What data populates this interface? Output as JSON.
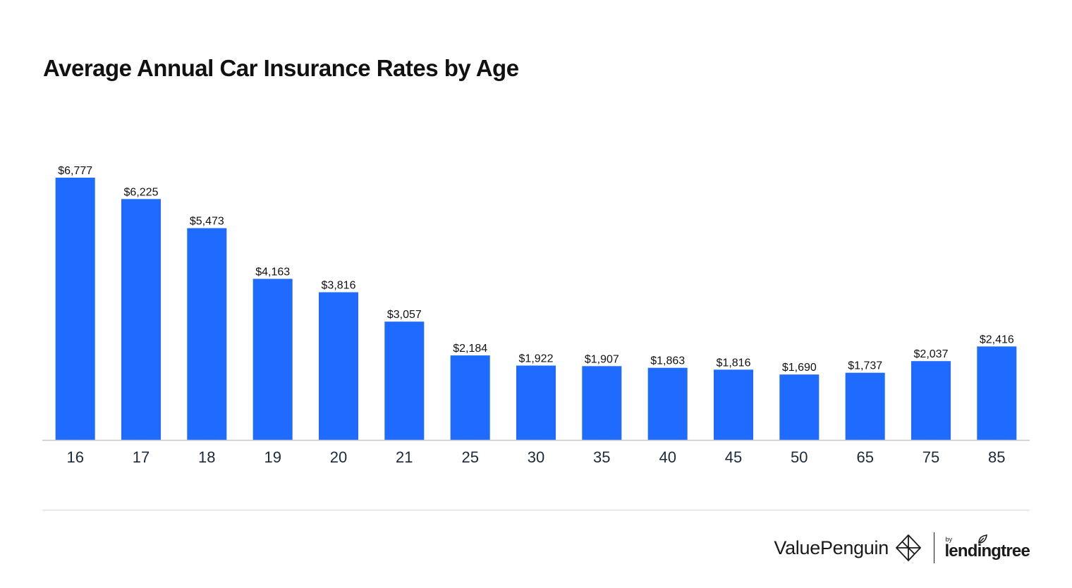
{
  "chart_data": {
    "type": "bar",
    "title": "Average Annual Car Insurance Rates by Age",
    "xlabel": "",
    "ylabel": "",
    "categories": [
      "16",
      "17",
      "18",
      "19",
      "20",
      "21",
      "25",
      "30",
      "35",
      "40",
      "45",
      "50",
      "65",
      "75",
      "85"
    ],
    "values": [
      6777,
      6225,
      5473,
      4163,
      3816,
      3057,
      2184,
      1922,
      1907,
      1863,
      1816,
      1690,
      1737,
      2037,
      2416
    ],
    "value_labels": [
      "$6,777",
      "$6,225",
      "$5,473",
      "$4,163",
      "$3,816",
      "$3,057",
      "$2,184",
      "$1,922",
      "$1,907",
      "$1,863",
      "$1,816",
      "$1,690",
      "$1,737",
      "$2,037",
      "$2,416"
    ],
    "ylim": [
      0,
      6777
    ],
    "grid": false,
    "legend": "none",
    "bar_color": "#1f6bff",
    "axis_color": "#c8c8c8",
    "label_color": "#111111",
    "tick_color": "#1c2a3a"
  },
  "branding": {
    "name": "ValuePenguin",
    "logo_icon": "valuepenguin-logo-icon",
    "partner_prefix": "by",
    "partner_name": "lendingtree",
    "partner_icon": "leaf-icon"
  }
}
